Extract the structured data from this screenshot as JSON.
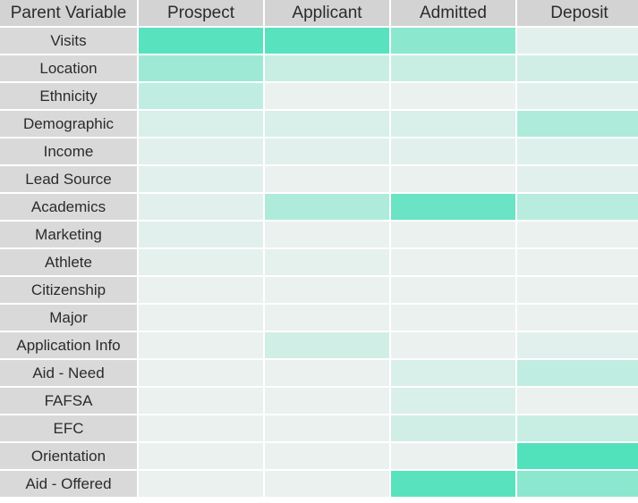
{
  "chart_data": {
    "type": "heatmap",
    "title": "",
    "corner_label": "Parent Variable",
    "columns": [
      "Prospect",
      "Applicant",
      "Admitted",
      "Deposit"
    ],
    "rows": [
      "Visits",
      "Location",
      "Ethnicity",
      "Demographic",
      "Income",
      "Lead Source",
      "Academics",
      "Marketing",
      "Athlete",
      "Citizenship",
      "Major",
      "Application Info",
      "Aid - Need",
      "FAFSA",
      "EFC",
      "Orientation",
      "Aid - Offered"
    ],
    "values": [
      [
        0.9,
        0.9,
        0.6,
        0.1
      ],
      [
        0.5,
        0.25,
        0.25,
        0.2
      ],
      [
        0.3,
        0.05,
        0.05,
        0.1
      ],
      [
        0.15,
        0.15,
        0.15,
        0.4
      ],
      [
        0.1,
        0.1,
        0.1,
        0.12
      ],
      [
        0.1,
        0.05,
        0.05,
        0.1
      ],
      [
        0.1,
        0.4,
        0.8,
        0.35
      ],
      [
        0.1,
        0.05,
        0.05,
        0.05
      ],
      [
        0.08,
        0.08,
        0.05,
        0.05
      ],
      [
        0.05,
        0.05,
        0.05,
        0.05
      ],
      [
        0.05,
        0.05,
        0.05,
        0.05
      ],
      [
        0.05,
        0.2,
        0.05,
        0.1
      ],
      [
        0.05,
        0.05,
        0.15,
        0.3
      ],
      [
        0.05,
        0.05,
        0.15,
        0.05
      ],
      [
        0.05,
        0.05,
        0.2,
        0.25
      ],
      [
        0.05,
        0.05,
        0.05,
        0.95
      ],
      [
        0.05,
        0.05,
        0.9,
        0.6
      ]
    ],
    "value_range": [
      0,
      1
    ],
    "color_low": "#f2f2f2",
    "color_high": "#48e0b8",
    "header_bg": "#d3d3d3",
    "label_bg": "#d9d9d9"
  }
}
